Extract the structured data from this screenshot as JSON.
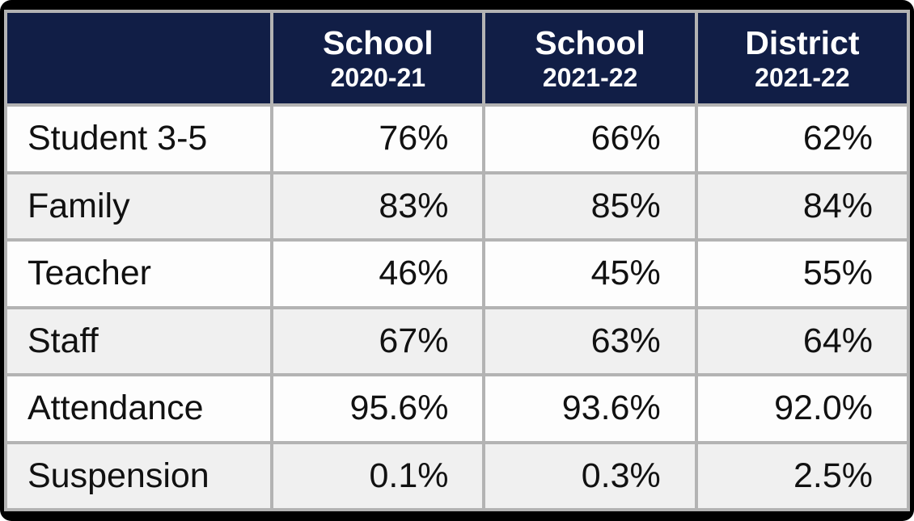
{
  "table": {
    "columns": [
      {
        "title": "",
        "subtitle": ""
      },
      {
        "title": "School",
        "subtitle": "2020-21"
      },
      {
        "title": "School",
        "subtitle": "2021-22"
      },
      {
        "title": "District",
        "subtitle": "2021-22"
      }
    ],
    "rows": [
      {
        "label": "Student 3-5",
        "values": [
          "76%",
          "66%",
          "62%"
        ]
      },
      {
        "label": "Family",
        "values": [
          "83%",
          "85%",
          "84%"
        ]
      },
      {
        "label": "Teacher",
        "values": [
          "46%",
          "45%",
          "55%"
        ]
      },
      {
        "label": "Staff",
        "values": [
          "67%",
          "63%",
          "64%"
        ]
      },
      {
        "label": "Attendance",
        "values": [
          "95.6%",
          "93.6%",
          "92.0%"
        ]
      },
      {
        "label": "Suspension",
        "values": [
          "0.1%",
          "0.3%",
          "2.5%"
        ]
      }
    ]
  },
  "colors": {
    "header_bg": "#111e46",
    "header_text": "#ffffff",
    "grid_line": "#b3b3b3",
    "row_bg": "#fdfdfd",
    "row_alt_bg": "#f0f0f0",
    "frame": "#000000",
    "cell_text": "#111111"
  },
  "chart_data": {
    "type": "table",
    "columns": [
      "",
      "School 2020-21",
      "School 2021-22",
      "District 2021-22"
    ],
    "rows": [
      [
        "Student 3-5",
        "76%",
        "66%",
        "62%"
      ],
      [
        "Family",
        "83%",
        "85%",
        "84%"
      ],
      [
        "Teacher",
        "46%",
        "45%",
        "55%"
      ],
      [
        "Staff",
        "67%",
        "63%",
        "64%"
      ],
      [
        "Attendance",
        "95.6%",
        "93.6%",
        "92.0%"
      ],
      [
        "Suspension",
        "0.1%",
        "0.3%",
        "2.5%"
      ]
    ]
  }
}
